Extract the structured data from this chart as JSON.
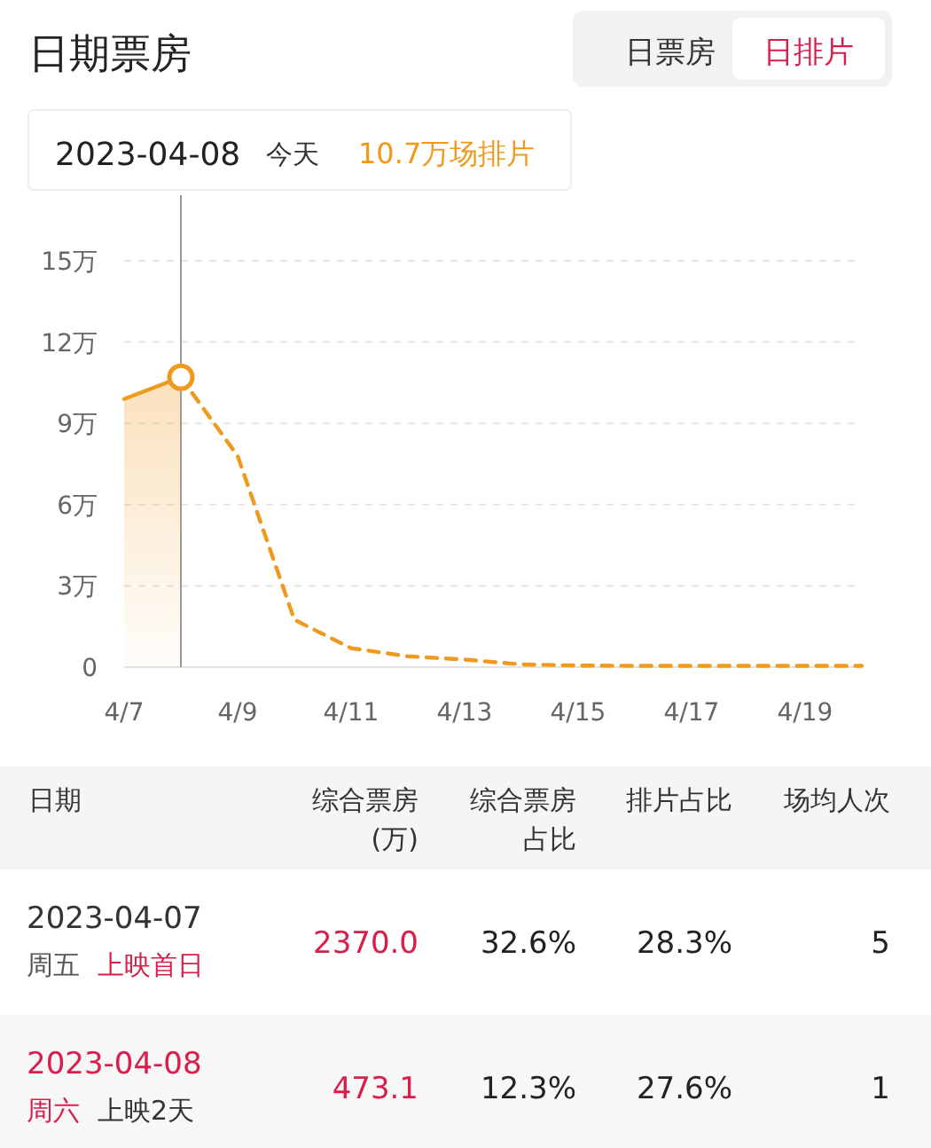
{
  "chart_data": [
    {
      "type": "line",
      "title": "日期票房",
      "series": [
        {
          "type": "area",
          "color": "#ee9a1f",
          "line_style": "solid",
          "marker": "none",
          "x": [
            "--04-07",
            "--04-08"
          ],
          "values": [
            9.9,
            10.7
          ]
        },
        {
          "type": "line",
          "color": "#ee9a1f",
          "line_style": "dashed",
          "marker": "none",
          "x": [
            "--04-08",
            "--04-09",
            "--04-10",
            "--04-11",
            "--04-12",
            "--04-13",
            "--04-14",
            "--04-15",
            "--04-16",
            "--04-17",
            "--04-18",
            "--04-19",
            "--04-20"
          ],
          "values": [
            10.7,
            7.8,
            1.75,
            0.7,
            0.4,
            0.28,
            0.1,
            0.06,
            0.05,
            0.05,
            0.05,
            0.05,
            0.05
          ]
        },
        {
          "type": "scatter",
          "color": "#ee9a1f",
          "marker": "circle",
          "x": [
            "--04-08"
          ],
          "values": [
            10.7
          ]
        }
      ],
      "xlim": [
        "--04-07",
        "--04-20"
      ],
      "xticks": [
        {
          "value": "--04-07",
          "label": "4/7"
        },
        {
          "value": "--04-09",
          "label": "4/9"
        },
        {
          "value": "--04-11",
          "label": "4/11"
        },
        {
          "value": "--04-13",
          "label": "4/13"
        },
        {
          "value": "--04-15",
          "label": "4/15"
        },
        {
          "value": "--04-17",
          "label": "4/17"
        },
        {
          "value": "--04-19",
          "label": "4/19"
        }
      ],
      "ylim": [
        0,
        15
      ],
      "yticks": [
        {
          "value": 0,
          "label": "0"
        },
        {
          "value": 3,
          "label": "3万"
        },
        {
          "value": 6,
          "label": "6万"
        },
        {
          "value": 9,
          "label": "9万"
        },
        {
          "value": 12,
          "label": "12万"
        },
        {
          "value": 15,
          "label": "15万"
        }
      ],
      "grid": "y",
      "ref_lines": [
        {
          "axis": "x",
          "value": "--04-08",
          "color": "#999999"
        }
      ],
      "annotations": [
        "日票房",
        "日排片",
        "2023-04-08",
        "今天",
        "10.7万场排片"
      ]
    },
    {
      "type": "other",
      "annotations": [
        "日期",
        "综合票房",
        "(万)",
        "综合票房",
        "占比",
        "排片占比",
        "场均人次",
        "2023-04-07",
        "周五",
        "上映首日",
        "2370.0",
        "32.6%",
        "28.3%",
        "5",
        "2023-04-08",
        "周六",
        "上映2天",
        "473.1",
        "12.3%",
        "27.6%",
        "1"
      ]
    }
  ]
}
